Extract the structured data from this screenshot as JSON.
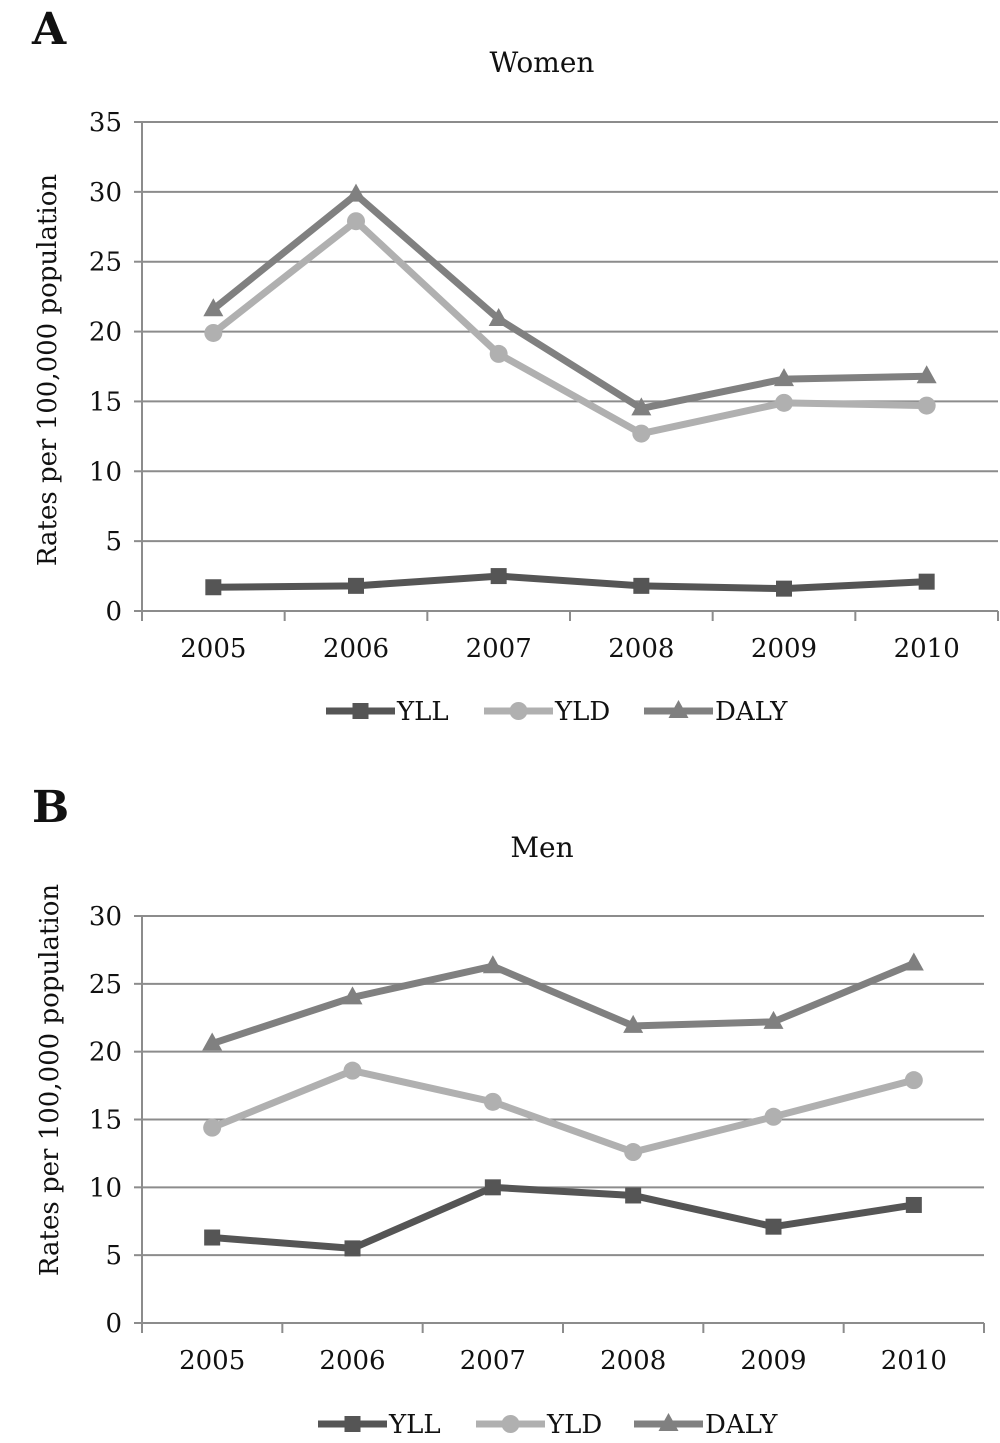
{
  "panels": [
    {
      "letter": "A",
      "chart_data": {
        "type": "line",
        "title": "Women",
        "xlabel": "",
        "ylabel": "Rates per 100,000 population",
        "categories": [
          "2005",
          "2006",
          "2007",
          "2008",
          "2009",
          "2010"
        ],
        "ylim": [
          0,
          35
        ],
        "yticks": [
          "0",
          "5",
          "10",
          "15",
          "20",
          "25",
          "30",
          "35"
        ],
        "grid": "horizontal",
        "legend": "bottom",
        "series": [
          {
            "name": "YLL",
            "values": [
              1.7,
              1.8,
              2.5,
              1.8,
              1.6,
              2.1
            ],
            "color": "#555555",
            "marker": "square"
          },
          {
            "name": "YLD",
            "values": [
              19.9,
              27.9,
              18.4,
              12.7,
              14.9,
              14.7
            ],
            "color": "#b0b0b0",
            "marker": "circle"
          },
          {
            "name": "DALY",
            "values": [
              21.6,
              29.8,
              20.9,
              14.5,
              16.6,
              16.8
            ],
            "color": "#808080",
            "marker": "triangle"
          }
        ]
      }
    },
    {
      "letter": "B",
      "chart_data": {
        "type": "line",
        "title": "Men",
        "xlabel": "",
        "ylabel": "Rates per 100,000 population",
        "categories": [
          "2005",
          "2006",
          "2007",
          "2008",
          "2009",
          "2010"
        ],
        "ylim": [
          0,
          30
        ],
        "yticks": [
          "0",
          "5",
          "10",
          "15",
          "20",
          "25",
          "30"
        ],
        "grid": "horizontal",
        "legend": "bottom",
        "series": [
          {
            "name": "YLL",
            "values": [
              6.3,
              5.5,
              10.0,
              9.4,
              7.1,
              8.7
            ],
            "color": "#555555",
            "marker": "square"
          },
          {
            "name": "YLD",
            "values": [
              14.4,
              18.6,
              16.3,
              12.6,
              15.2,
              17.9
            ],
            "color": "#b0b0b0",
            "marker": "circle"
          },
          {
            "name": "DALY",
            "values": [
              20.6,
              24.0,
              26.3,
              21.9,
              22.2,
              26.5
            ],
            "color": "#808080",
            "marker": "triangle"
          }
        ]
      }
    }
  ]
}
